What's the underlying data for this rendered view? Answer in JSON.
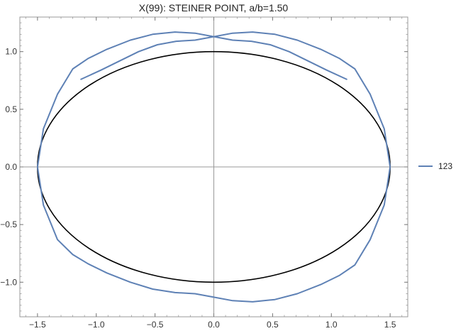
{
  "chart_data": {
    "type": "line",
    "title": "X(99): STEINER POINT, a/b=1.50",
    "xlim": [
      -1.65,
      1.65
    ],
    "ylim": [
      -1.3,
      1.3
    ],
    "x_ticks": [
      -1.5,
      -1.0,
      -0.5,
      0.0,
      0.5,
      1.0,
      1.5
    ],
    "x_tick_labels": [
      "−1.5",
      "−1.0",
      "−0.5",
      "0.0",
      "0.5",
      "1.0",
      "1.5"
    ],
    "y_ticks": [
      -1.0,
      -0.5,
      0.0,
      0.5,
      1.0
    ],
    "y_tick_labels": [
      "−1.0",
      "−0.5",
      "0.0",
      "0.5",
      "1.0"
    ],
    "grid": false,
    "legend_position": "right",
    "ellipse": {
      "a": 1.5,
      "b": 1.0,
      "color": "#000000"
    },
    "series": [
      {
        "name": "123",
        "color": "#5e81b5",
        "x": [
          -1.13,
          -0.96,
          -0.8,
          -0.64,
          -0.48,
          -0.32,
          -0.16,
          0.0,
          0.16,
          0.33,
          0.52,
          0.71,
          0.91,
          1.07,
          1.2,
          1.33,
          1.45,
          1.5,
          1.45,
          1.33,
          1.2,
          1.07,
          0.91,
          0.71,
          0.52,
          0.33,
          0.16,
          0.0,
          -0.16,
          -0.33,
          -0.52,
          -0.71,
          -0.91,
          -1.07,
          -1.2,
          -1.33,
          -1.45,
          -1.5,
          -1.45,
          -1.33,
          -1.2,
          -1.07,
          -0.91,
          -0.71,
          -0.52,
          -0.33,
          -0.16,
          0.0,
          0.16,
          0.32,
          0.48,
          0.64,
          0.8,
          0.96,
          1.13
        ],
        "y": [
          0.76,
          0.84,
          0.92,
          1.0,
          1.06,
          1.09,
          1.1,
          1.13,
          1.16,
          1.17,
          1.15,
          1.1,
          1.02,
          0.94,
          0.85,
          0.63,
          0.33,
          0.0,
          -0.33,
          -0.63,
          -0.85,
          -0.94,
          -1.02,
          -1.1,
          -1.15,
          -1.17,
          -1.16,
          -1.13,
          -1.1,
          -1.09,
          -1.06,
          -1.0,
          -0.92,
          -0.84,
          -0.76,
          -0.63,
          -0.33,
          0.0,
          0.33,
          0.63,
          0.85,
          0.94,
          1.02,
          1.1,
          1.15,
          1.17,
          1.16,
          1.13,
          1.1,
          1.09,
          1.06,
          1.0,
          0.92,
          0.84,
          0.76
        ]
      }
    ]
  }
}
